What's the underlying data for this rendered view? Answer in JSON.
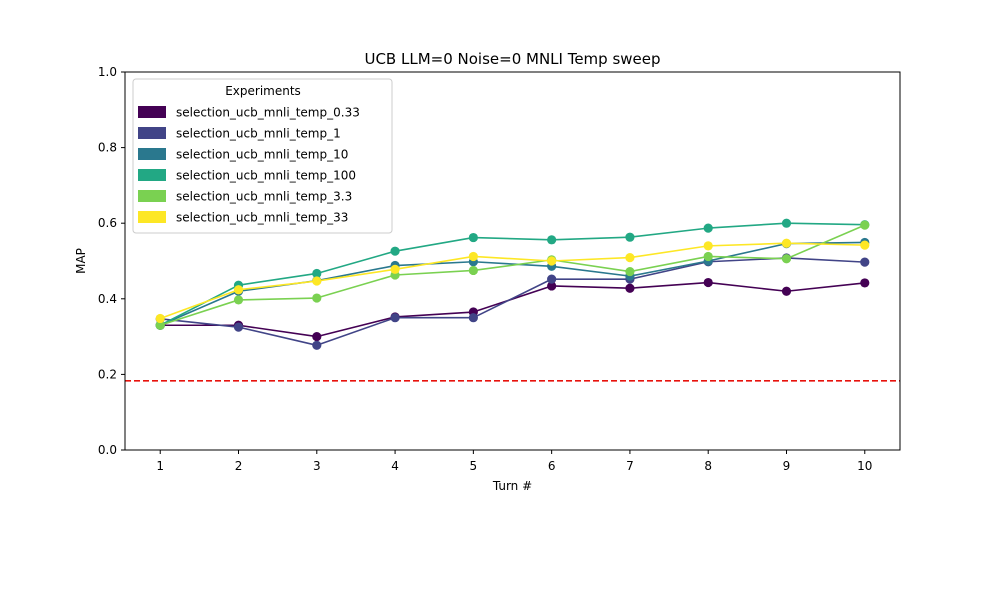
{
  "chart_data": {
    "type": "line",
    "title": "UCB LLM=0 Noise=0 MNLI Temp sweep",
    "xlabel": "Turn #",
    "ylabel": "MAP",
    "x": [
      1,
      2,
      3,
      4,
      5,
      6,
      7,
      8,
      9,
      10
    ],
    "xlim": [
      0.55,
      10.45
    ],
    "ylim": [
      0.0,
      1.0
    ],
    "yticks": [
      "0.0",
      "0.2",
      "0.4",
      "0.6",
      "0.8",
      "1.0"
    ],
    "xticks": [
      "1",
      "2",
      "3",
      "4",
      "5",
      "6",
      "7",
      "8",
      "9",
      "10"
    ],
    "grid": false,
    "legend": {
      "title": "Experiments",
      "placement": "top-left"
    },
    "baseline": {
      "y": 0.183,
      "color": "#e8120c",
      "style": "dashed"
    },
    "series": [
      {
        "name": "selection_ucb_mnli_temp_0.33",
        "color": "#440154",
        "values": [
          0.33,
          0.33,
          0.3,
          0.352,
          0.365,
          0.434,
          0.428,
          0.443,
          0.42,
          0.442
        ]
      },
      {
        "name": "selection_ucb_mnli_temp_1",
        "color": "#414487",
        "values": [
          0.347,
          0.325,
          0.277,
          0.35,
          0.35,
          0.452,
          0.452,
          0.498,
          0.508,
          0.497
        ]
      },
      {
        "name": "selection_ucb_mnli_temp_10",
        "color": "#2a788e",
        "values": [
          0.33,
          0.42,
          0.448,
          0.488,
          0.498,
          0.486,
          0.46,
          0.5,
          0.546,
          0.549
        ]
      },
      {
        "name": "selection_ucb_mnli_temp_100",
        "color": "#22a884",
        "values": [
          0.33,
          0.436,
          0.467,
          0.526,
          0.562,
          0.556,
          0.563,
          0.587,
          0.6,
          0.596
        ]
      },
      {
        "name": "selection_ucb_mnli_temp_3.3",
        "color": "#7ad151",
        "values": [
          0.33,
          0.397,
          0.402,
          0.463,
          0.475,
          0.503,
          0.472,
          0.512,
          0.506,
          0.595
        ]
      },
      {
        "name": "selection_ucb_mnli_temp_33",
        "color": "#fde725",
        "values": [
          0.348,
          0.424,
          0.447,
          0.478,
          0.512,
          0.5,
          0.509,
          0.54,
          0.547,
          0.542
        ]
      }
    ]
  }
}
